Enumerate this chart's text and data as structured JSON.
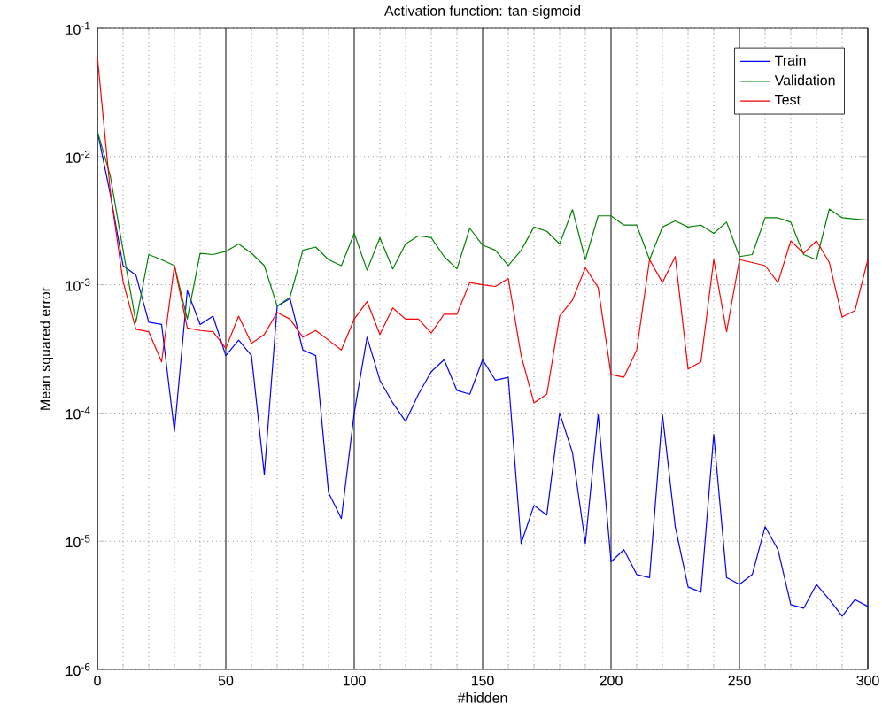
{
  "chart_data": {
    "type": "line",
    "title": "Activation function: tan-sigmoid",
    "xlabel": "#hidden",
    "ylabel": "Mean squared error",
    "log": "y",
    "grid": true,
    "legend": "top right",
    "x": [
      0,
      5,
      10,
      15,
      20,
      25,
      30,
      35,
      40,
      45,
      50,
      55,
      60,
      65,
      70,
      75,
      80,
      85,
      90,
      95,
      100,
      105,
      110,
      115,
      120,
      125,
      130,
      135,
      140,
      145,
      150,
      155,
      160,
      165,
      170,
      175,
      180,
      185,
      190,
      195,
      200,
      205,
      210,
      215,
      220,
      225,
      230,
      235,
      240,
      245,
      250,
      255,
      260,
      265,
      270,
      275,
      280,
      285,
      290,
      295,
      300
    ],
    "xlim": [
      0,
      300
    ],
    "xticks": [
      0,
      50,
      100,
      150,
      200,
      250,
      300
    ],
    "ylim": [
      1e-06,
      0.1
    ],
    "yticks": [
      {
        "value": 1e-06,
        "label": "10$^{-6}$"
      },
      {
        "value": 1e-05,
        "label": "10$^{-5}$"
      },
      {
        "value": 0.0001,
        "label": "10$^{-4}$"
      },
      {
        "value": 0.001,
        "label": "10$^{-3}$"
      },
      {
        "value": 0.01,
        "label": "10$^{-2}$"
      },
      {
        "value": 0.1,
        "label": "10$^{-1}$"
      }
    ],
    "series": [
      {
        "name": "Train",
        "color": "#0000ff",
        "values": [
          0.0157,
          0.0051,
          0.00141,
          0.00119,
          0.00051,
          0.00049,
          7.2e-05,
          0.0009,
          0.00049,
          0.00057,
          0.00028,
          0.00037,
          0.00028,
          3.3e-05,
          0.00068,
          0.00078,
          0.00031,
          0.00028,
          2.4e-05,
          1.5e-05,
          0.0001,
          0.00039,
          0.00018,
          0.00012,
          8.6e-05,
          0.00014,
          0.00021,
          0.00026,
          0.00015,
          0.00014,
          0.00026,
          0.00018,
          0.00019,
          9.6e-06,
          1.9e-05,
          1.6e-05,
          0.0001,
          4.9e-05,
          9.6e-06,
          9.8e-05,
          6.9e-06,
          8.6e-06,
          5.5e-06,
          5.2e-06,
          9.8e-05,
          1.3e-05,
          4.4e-06,
          4e-06,
          6.8e-05,
          5.2e-06,
          4.6e-06,
          5.5e-06,
          1.3e-05,
          8.6e-06,
          3.2e-06,
          3e-06,
          4.6e-06,
          3.5e-06,
          2.6e-06,
          3.5e-06,
          3.1e-06
        ]
      },
      {
        "name": "Validation",
        "color": "#008000",
        "values": [
          0.0157,
          0.0071,
          0.00186,
          0.00051,
          0.00172,
          0.00157,
          0.00141,
          0.00054,
          0.00176,
          0.00172,
          0.00182,
          0.00208,
          0.00176,
          0.00141,
          0.00068,
          0.0008,
          0.00186,
          0.00197,
          0.00157,
          0.00141,
          0.00252,
          0.0013,
          0.00233,
          0.00133,
          0.00208,
          0.00241,
          0.00233,
          0.00166,
          0.00133,
          0.00276,
          0.00204,
          0.00186,
          0.00141,
          0.00186,
          0.00282,
          0.00261,
          0.00208,
          0.00386,
          0.00157,
          0.00345,
          0.00345,
          0.00292,
          0.00292,
          0.00157,
          0.00282,
          0.00315,
          0.00282,
          0.00292,
          0.00252,
          0.00308,
          0.00166,
          0.00172,
          0.00333,
          0.00333,
          0.00308,
          0.00172,
          0.00157,
          0.0039,
          0.00333,
          0.00326,
          0.00319
        ]
      },
      {
        "name": "Test",
        "color": "#ff0000",
        "values": [
          0.06,
          0.0054,
          0.00106,
          0.00045,
          0.00043,
          0.00025,
          0.00141,
          0.00046,
          0.00044,
          0.00043,
          0.00032,
          0.00057,
          0.00035,
          0.00041,
          0.00061,
          0.00054,
          0.00039,
          0.00044,
          0.00037,
          0.00031,
          0.00054,
          0.00074,
          0.00041,
          0.00066,
          0.00054,
          0.00054,
          0.00042,
          0.00059,
          0.00059,
          0.00104,
          0.001,
          0.00097,
          0.00112,
          0.00028,
          0.00012,
          0.00014,
          0.00057,
          0.00076,
          0.00136,
          0.00095,
          0.0002,
          0.00019,
          0.00031,
          0.00157,
          0.00104,
          0.00166,
          0.00022,
          0.00025,
          0.00157,
          0.00043,
          0.00157,
          0.00149,
          0.00141,
          0.00104,
          0.0022,
          0.00176,
          0.0022,
          0.00149,
          0.00056,
          0.00063,
          0.00157
        ]
      }
    ]
  }
}
